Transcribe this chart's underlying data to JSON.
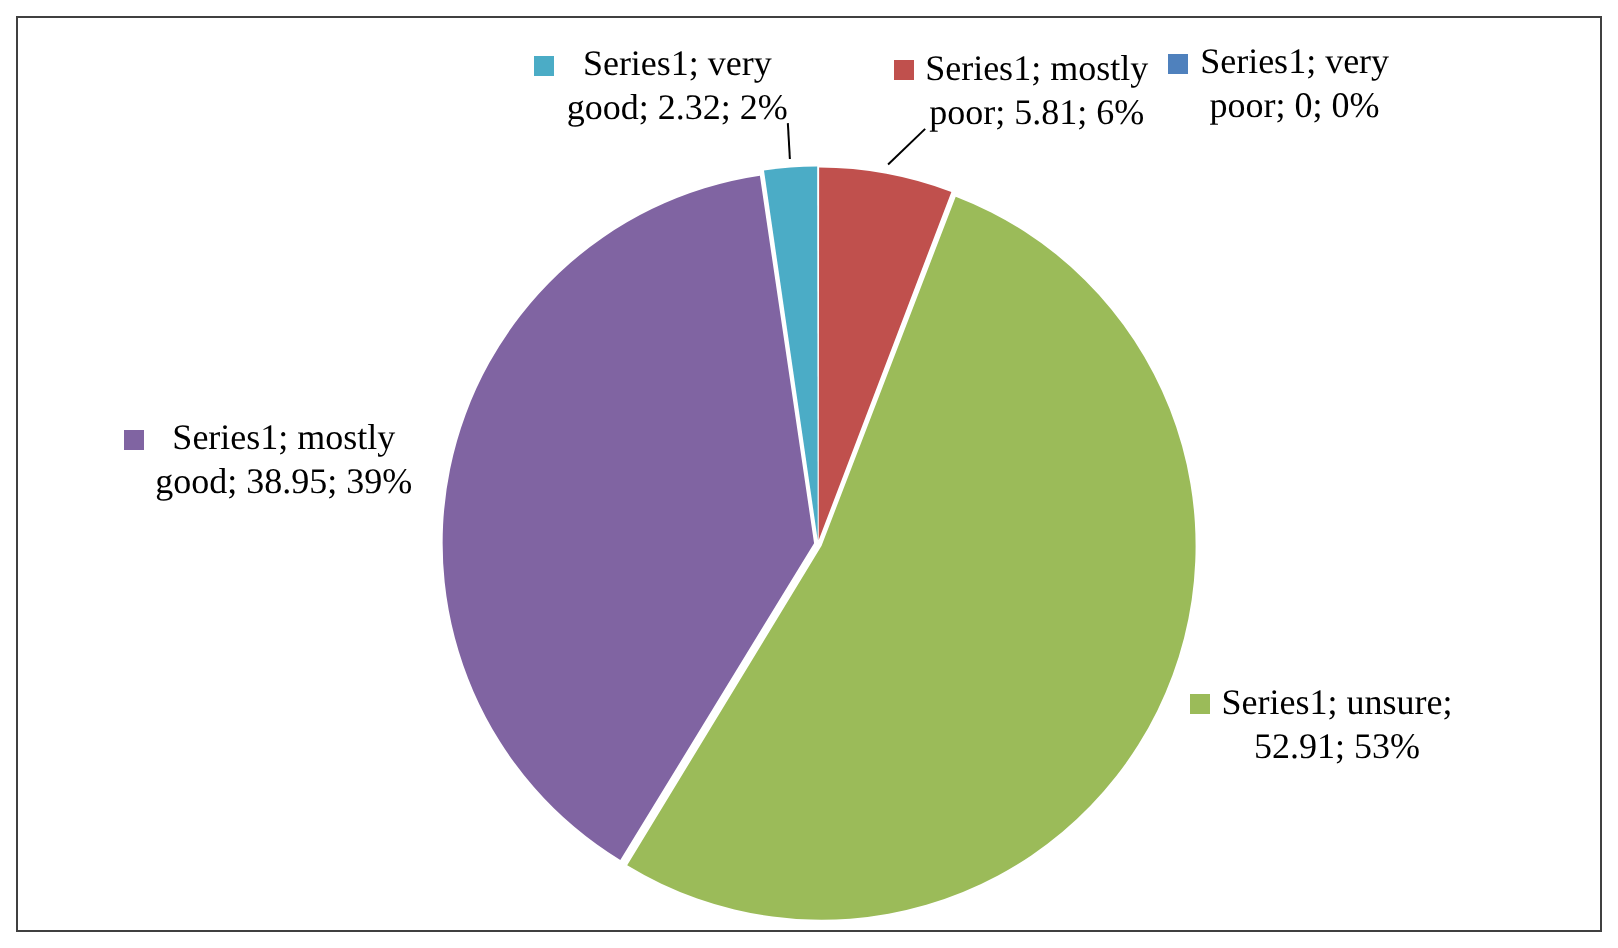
{
  "chart_data": {
    "type": "pie",
    "categories": [
      null,
      null,
      null,
      null,
      null
    ],
    "values": [
      0,
      5.81,
      52.91,
      38.95,
      2.32
    ],
    "colors": [
      "#4f81bd",
      "#c0504d",
      "#9bbb59",
      "#8064a2",
      "#4bacc6"
    ],
    "value_labels": [
      "Series1; very poor; 0; 0%",
      "Series1; mostly poor; 5.81; 6%",
      "Series1; unsure; 52.91; 53%",
      "Series1; mostly good; 38.95; 39%",
      "Series1; very good; 2.32; 2%"
    ]
  }
}
